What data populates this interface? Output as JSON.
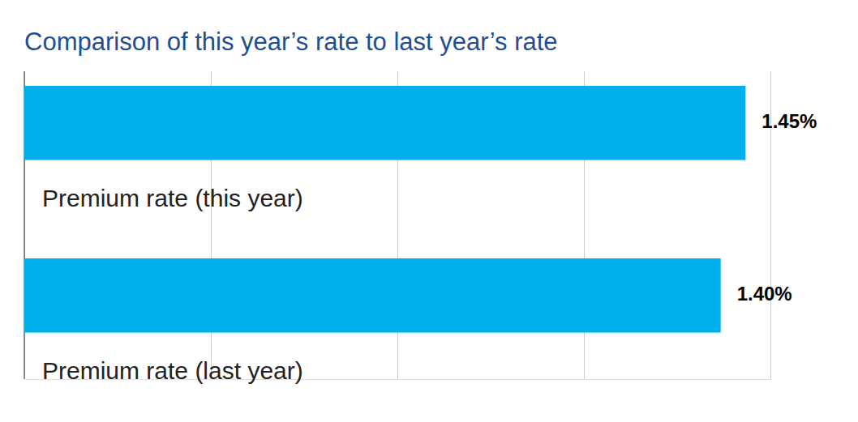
{
  "chart_data": {
    "type": "bar",
    "orientation": "horizontal",
    "title": "Comparison of this year’s rate to last year’s rate",
    "categories": [
      "Premium rate (this year)",
      "Premium rate (last year)"
    ],
    "values": [
      1.45,
      1.4
    ],
    "value_labels": [
      "1.45%",
      "1.40%"
    ],
    "data_labels": true,
    "color": "#00b0ec",
    "xlim": [
      0,
      1.5
    ],
    "xticks": [
      0,
      0.375,
      0.75,
      1.125,
      1.5
    ],
    "grid": true,
    "tick_labels": false
  }
}
